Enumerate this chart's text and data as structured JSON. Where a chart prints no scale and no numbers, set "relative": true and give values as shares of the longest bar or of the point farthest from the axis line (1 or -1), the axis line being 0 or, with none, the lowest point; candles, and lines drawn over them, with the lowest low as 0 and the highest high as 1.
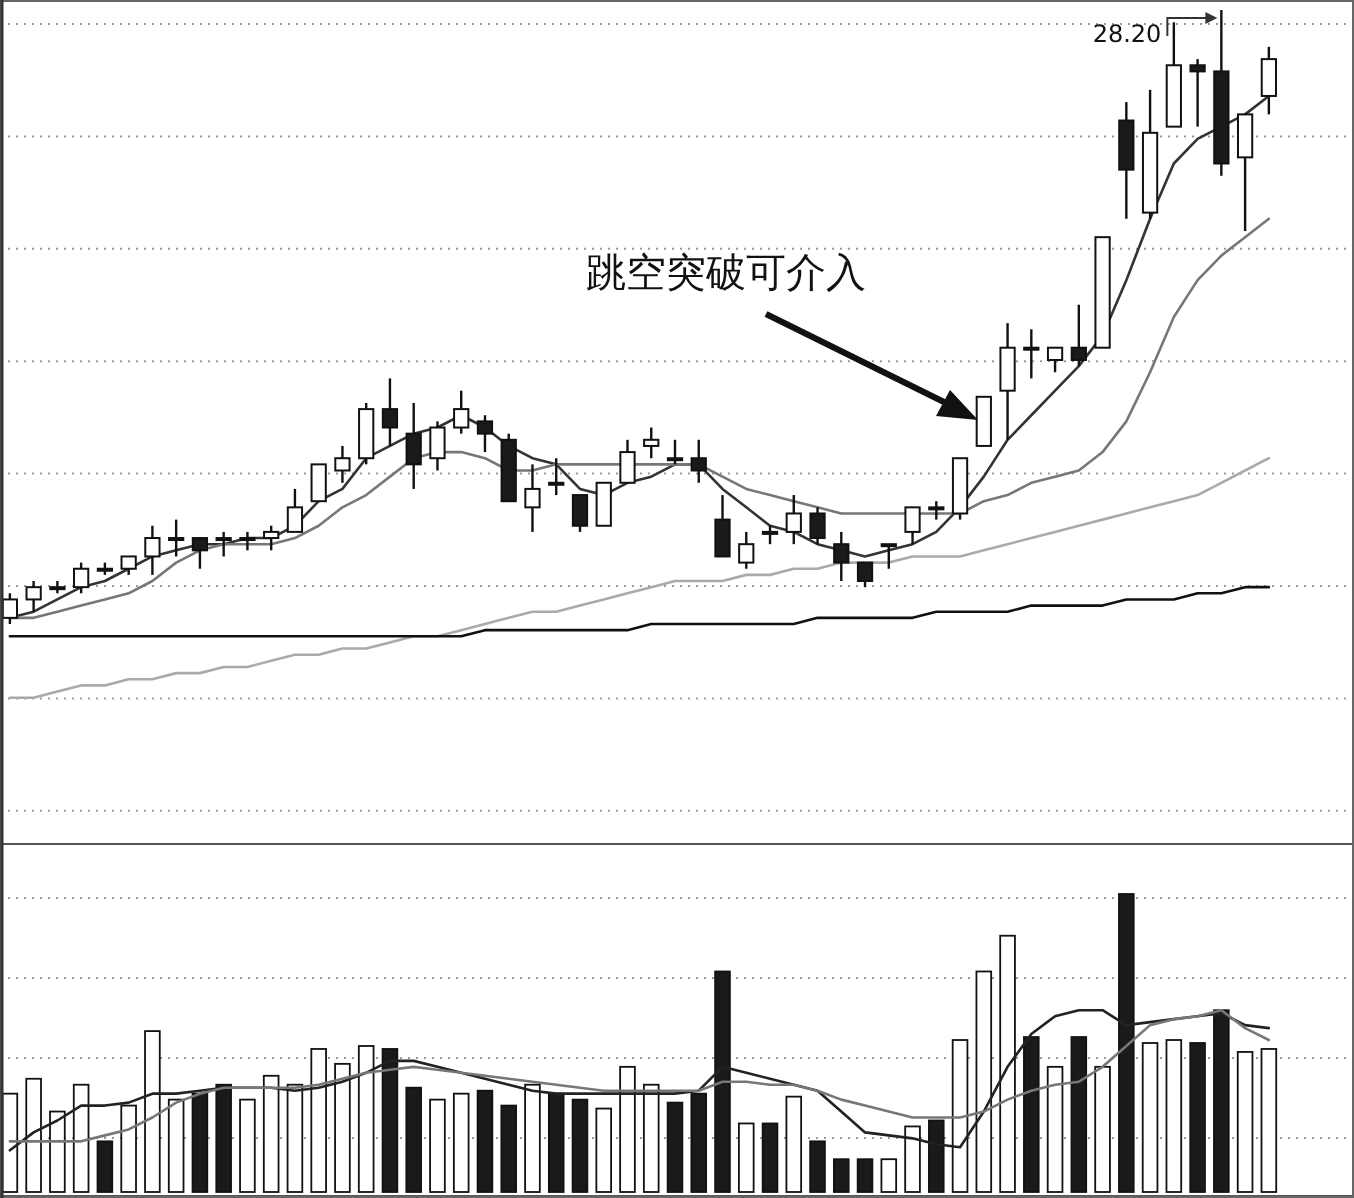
{
  "chart_data": [
    {
      "type": "candlestick",
      "relative": true,
      "grid": "y",
      "categories": [
        null,
        null,
        null,
        null,
        null,
        null,
        null,
        null,
        null,
        null,
        null,
        null,
        null,
        null,
        null,
        null,
        null,
        null,
        null,
        null,
        null,
        null,
        null,
        null,
        null,
        null,
        null,
        null,
        null,
        null,
        null,
        null,
        null,
        null,
        null,
        null,
        null,
        null,
        null,
        null,
        null,
        null,
        null,
        null,
        null,
        null,
        null,
        null,
        null,
        null,
        null,
        null,
        null,
        null
      ],
      "ohlc": [
        [
          0.01,
          0.05,
          0.0,
          0.04
        ],
        [
          0.04,
          0.07,
          0.02,
          0.06
        ],
        [
          0.06,
          0.07,
          0.05,
          0.06
        ],
        [
          0.06,
          0.1,
          0.05,
          0.09
        ],
        [
          0.09,
          0.1,
          0.08,
          0.09
        ],
        [
          0.09,
          0.11,
          0.08,
          0.11
        ],
        [
          0.11,
          0.16,
          0.08,
          0.14
        ],
        [
          0.14,
          0.17,
          0.11,
          0.14
        ],
        [
          0.14,
          0.14,
          0.09,
          0.12
        ],
        [
          0.14,
          0.15,
          0.11,
          0.14
        ],
        [
          0.14,
          0.15,
          0.12,
          0.14
        ],
        [
          0.14,
          0.16,
          0.12,
          0.15
        ],
        [
          0.15,
          0.22,
          0.15,
          0.19
        ],
        [
          0.2,
          0.26,
          0.2,
          0.26
        ],
        [
          0.25,
          0.29,
          0.23,
          0.27
        ],
        [
          0.27,
          0.36,
          0.26,
          0.35
        ],
        [
          0.35,
          0.4,
          0.29,
          0.32
        ],
        [
          0.31,
          0.36,
          0.22,
          0.26
        ],
        [
          0.27,
          0.33,
          0.25,
          0.32
        ],
        [
          0.32,
          0.38,
          0.31,
          0.35
        ],
        [
          0.33,
          0.34,
          0.28,
          0.31
        ],
        [
          0.3,
          0.31,
          0.2,
          0.2
        ],
        [
          0.19,
          0.26,
          0.15,
          0.22
        ],
        [
          0.23,
          0.27,
          0.21,
          0.23
        ],
        [
          0.21,
          0.21,
          0.15,
          0.16
        ],
        [
          0.16,
          0.23,
          0.16,
          0.23
        ],
        [
          0.23,
          0.3,
          0.23,
          0.28
        ],
        [
          0.29,
          0.32,
          0.27,
          0.3
        ],
        [
          0.27,
          0.3,
          0.26,
          0.27
        ],
        [
          0.27,
          0.3,
          0.23,
          0.25
        ],
        [
          0.17,
          0.21,
          0.11,
          0.11
        ],
        [
          0.1,
          0.15,
          0.09,
          0.13
        ],
        [
          0.15,
          0.16,
          0.13,
          0.15
        ],
        [
          0.15,
          0.21,
          0.13,
          0.18
        ],
        [
          0.18,
          0.19,
          0.13,
          0.14
        ],
        [
          0.13,
          0.15,
          0.07,
          0.1
        ],
        [
          0.1,
          0.1,
          0.06,
          0.07
        ],
        [
          0.13,
          0.13,
          0.09,
          0.13
        ],
        [
          0.15,
          0.19,
          0.13,
          0.19
        ],
        [
          0.19,
          0.2,
          0.17,
          0.19
        ],
        [
          0.18,
          0.27,
          0.17,
          0.27
        ],
        [
          0.29,
          0.37,
          0.29,
          0.37
        ],
        [
          0.38,
          0.49,
          0.3,
          0.45
        ],
        [
          0.45,
          0.48,
          0.4,
          0.45
        ],
        [
          0.43,
          0.45,
          0.41,
          0.45
        ],
        [
          0.45,
          0.52,
          0.42,
          0.43
        ],
        [
          0.45,
          0.63,
          0.45,
          0.63
        ],
        [
          0.82,
          0.85,
          0.66,
          0.74
        ],
        [
          0.67,
          0.87,
          0.66,
          0.8
        ],
        [
          0.81,
          0.98,
          0.81,
          0.91
        ],
        [
          0.91,
          0.92,
          0.81,
          0.9
        ],
        [
          0.9,
          1.0,
          0.73,
          0.75
        ],
        [
          0.76,
          0.83,
          0.64,
          0.83
        ],
        [
          0.86,
          0.94,
          0.83,
          0.92
        ]
      ],
      "colors": [
        "#ffffff",
        "#ffffff",
        "#ffffff",
        "#ffffff",
        "#1a1a1a",
        "#ffffff",
        "#ffffff",
        "#ffffff",
        "#1a1a1a",
        "#1a1a1a",
        "#ffffff",
        "#ffffff",
        "#ffffff",
        "#ffffff",
        "#ffffff",
        "#ffffff",
        "#1a1a1a",
        "#1a1a1a",
        "#ffffff",
        "#ffffff",
        "#1a1a1a",
        "#1a1a1a",
        "#ffffff",
        "#1a1a1a",
        "#1a1a1a",
        "#ffffff",
        "#ffffff",
        "#ffffff",
        "#1a1a1a",
        "#1a1a1a",
        "#1a1a1a",
        "#ffffff",
        "#1a1a1a",
        "#ffffff",
        "#1a1a1a",
        "#1a1a1a",
        "#1a1a1a",
        "#ffffff",
        "#ffffff",
        "#1a1a1a",
        "#ffffff",
        "#ffffff",
        "#ffffff",
        "#1a1a1a",
        "#ffffff",
        "#1a1a1a",
        "#ffffff",
        "#1a1a1a",
        "#ffffff",
        "#ffffff",
        "#1a1a1a",
        "#1a1a1a",
        "#ffffff",
        "#ffffff"
      ],
      "series": [
        {
          "type": "line",
          "color": "#333333",
          "values": [
            0.01,
            0.02,
            0.04,
            0.06,
            0.07,
            0.09,
            0.11,
            0.12,
            0.13,
            0.13,
            0.14,
            0.14,
            0.16,
            0.2,
            0.22,
            0.27,
            0.29,
            0.31,
            0.32,
            0.34,
            0.32,
            0.29,
            0.27,
            0.26,
            0.22,
            0.21,
            0.23,
            0.24,
            0.26,
            0.26,
            0.22,
            0.19,
            0.16,
            0.15,
            0.13,
            0.12,
            0.11,
            0.12,
            0.13,
            0.15,
            0.19,
            0.24,
            0.3,
            0.34,
            0.38,
            0.42,
            0.47,
            0.56,
            0.66,
            0.75,
            0.79,
            0.81,
            0.83,
            0.86
          ]
        },
        {
          "type": "line",
          "color": "#777777",
          "values": [
            0.01,
            0.01,
            0.02,
            0.03,
            0.04,
            0.05,
            0.07,
            0.1,
            0.12,
            0.13,
            0.13,
            0.13,
            0.14,
            0.16,
            0.19,
            0.21,
            0.24,
            0.27,
            0.28,
            0.28,
            0.27,
            0.25,
            0.25,
            0.26,
            0.26,
            0.26,
            0.26,
            0.26,
            0.26,
            0.26,
            0.24,
            0.22,
            0.21,
            0.2,
            0.19,
            0.18,
            0.18,
            0.18,
            0.18,
            0.18,
            0.18,
            0.2,
            0.21,
            0.23,
            0.24,
            0.25,
            0.28,
            0.33,
            0.41,
            0.5,
            0.56,
            0.6,
            0.63,
            0.66
          ]
        },
        {
          "type": "line",
          "color": "#aaaaaa",
          "values": [
            -0.12,
            -0.12,
            -0.11,
            -0.1,
            -0.1,
            -0.09,
            -0.09,
            -0.08,
            -0.08,
            -0.07,
            -0.07,
            -0.06,
            -0.05,
            -0.05,
            -0.04,
            -0.04,
            -0.03,
            -0.02,
            -0.02,
            -0.01,
            0.0,
            0.01,
            0.02,
            0.02,
            0.03,
            0.04,
            0.05,
            0.06,
            0.07,
            0.07,
            0.07,
            0.08,
            0.08,
            0.09,
            0.09,
            0.1,
            0.1,
            0.1,
            0.11,
            0.11,
            0.11,
            0.12,
            0.13,
            0.14,
            0.15,
            0.16,
            0.17,
            0.18,
            0.19,
            0.2,
            0.21,
            0.23,
            0.25,
            0.27
          ]
        },
        {
          "type": "line",
          "color": "#111111",
          "values": [
            -0.02,
            -0.02,
            -0.02,
            -0.02,
            -0.02,
            -0.02,
            -0.02,
            -0.02,
            -0.02,
            -0.02,
            -0.02,
            -0.02,
            -0.02,
            -0.02,
            -0.02,
            -0.02,
            -0.02,
            -0.02,
            -0.02,
            -0.02,
            -0.01,
            -0.01,
            -0.01,
            -0.01,
            -0.01,
            -0.01,
            -0.01,
            0.0,
            0.0,
            0.0,
            0.0,
            0.0,
            0.0,
            0.0,
            0.01,
            0.01,
            0.01,
            0.01,
            0.01,
            0.02,
            0.02,
            0.02,
            0.02,
            0.03,
            0.03,
            0.03,
            0.03,
            0.04,
            0.04,
            0.04,
            0.05,
            0.05,
            0.06,
            0.06
          ]
        }
      ],
      "annotations": [
        "跳空突破可介入",
        "28.20"
      ]
    },
    {
      "type": "bar",
      "relative": true,
      "grid": "y",
      "categories": [
        null,
        null,
        null,
        null,
        null,
        null,
        null,
        null,
        null,
        null,
        null,
        null,
        null,
        null,
        null,
        null,
        null,
        null,
        null,
        null,
        null,
        null,
        null,
        null,
        null,
        null,
        null,
        null,
        null,
        null,
        null,
        null,
        null,
        null,
        null,
        null,
        null,
        null,
        null,
        null,
        null,
        null,
        null,
        null,
        null,
        null,
        null,
        null,
        null,
        null,
        null,
        null,
        null,
        null
      ],
      "series": [
        {
          "type": "bar",
          "values": [
            0.33,
            0.38,
            0.27,
            0.36,
            0.17,
            0.29,
            0.54,
            0.31,
            0.33,
            0.36,
            0.31,
            0.39,
            0.36,
            0.48,
            0.43,
            0.49,
            0.48,
            0.35,
            0.31,
            0.33,
            0.34,
            0.29,
            0.36,
            0.33,
            0.31,
            0.28,
            0.42,
            0.36,
            0.3,
            0.33,
            0.74,
            0.23,
            0.23,
            0.32,
            0.17,
            0.11,
            0.11,
            0.11,
            0.22,
            0.24,
            0.51,
            0.74,
            0.86,
            0.52,
            0.42,
            0.52,
            0.42,
            1.0,
            0.5,
            0.51,
            0.5,
            0.61,
            0.47,
            0.48
          ],
          "colors": [
            "#ffffff",
            "#ffffff",
            "#ffffff",
            "#ffffff",
            "#1a1a1a",
            "#ffffff",
            "#ffffff",
            "#ffffff",
            "#1a1a1a",
            "#1a1a1a",
            "#ffffff",
            "#ffffff",
            "#ffffff",
            "#ffffff",
            "#ffffff",
            "#ffffff",
            "#1a1a1a",
            "#1a1a1a",
            "#ffffff",
            "#ffffff",
            "#1a1a1a",
            "#1a1a1a",
            "#ffffff",
            "#1a1a1a",
            "#1a1a1a",
            "#ffffff",
            "#ffffff",
            "#ffffff",
            "#1a1a1a",
            "#1a1a1a",
            "#1a1a1a",
            "#ffffff",
            "#1a1a1a",
            "#ffffff",
            "#1a1a1a",
            "#1a1a1a",
            "#1a1a1a",
            "#ffffff",
            "#ffffff",
            "#1a1a1a",
            "#ffffff",
            "#ffffff",
            "#ffffff",
            "#1a1a1a",
            "#ffffff",
            "#1a1a1a",
            "#ffffff",
            "#1a1a1a",
            "#ffffff",
            "#ffffff",
            "#1a1a1a",
            "#1a1a1a",
            "#ffffff",
            "#ffffff"
          ]
        },
        {
          "type": "line",
          "color": "#222222",
          "values": [
            0.14,
            0.2,
            0.24,
            0.29,
            0.29,
            0.3,
            0.33,
            0.33,
            0.34,
            0.35,
            0.35,
            0.35,
            0.34,
            0.35,
            0.37,
            0.4,
            0.44,
            0.44,
            0.42,
            0.4,
            0.38,
            0.36,
            0.34,
            0.33,
            0.33,
            0.33,
            0.33,
            0.33,
            0.33,
            0.34,
            0.42,
            0.4,
            0.38,
            0.36,
            0.34,
            0.27,
            0.2,
            0.19,
            0.18,
            0.16,
            0.15,
            0.27,
            0.42,
            0.53,
            0.59,
            0.61,
            0.61,
            0.56,
            0.57,
            0.58,
            0.59,
            0.6,
            0.56,
            0.55
          ]
        },
        {
          "type": "line",
          "color": "#777777",
          "values": [
            0.17,
            0.17,
            0.17,
            0.17,
            0.19,
            0.21,
            0.25,
            0.3,
            0.33,
            0.35,
            0.35,
            0.35,
            0.35,
            0.36,
            0.38,
            0.4,
            0.41,
            0.42,
            0.41,
            0.4,
            0.39,
            0.38,
            0.37,
            0.36,
            0.35,
            0.34,
            0.34,
            0.34,
            0.34,
            0.34,
            0.37,
            0.37,
            0.36,
            0.36,
            0.34,
            0.31,
            0.29,
            0.27,
            0.25,
            0.25,
            0.25,
            0.27,
            0.31,
            0.34,
            0.36,
            0.37,
            0.42,
            0.49,
            0.56,
            0.58,
            0.59,
            0.61,
            0.55,
            0.51
          ]
        }
      ]
    }
  ]
}
